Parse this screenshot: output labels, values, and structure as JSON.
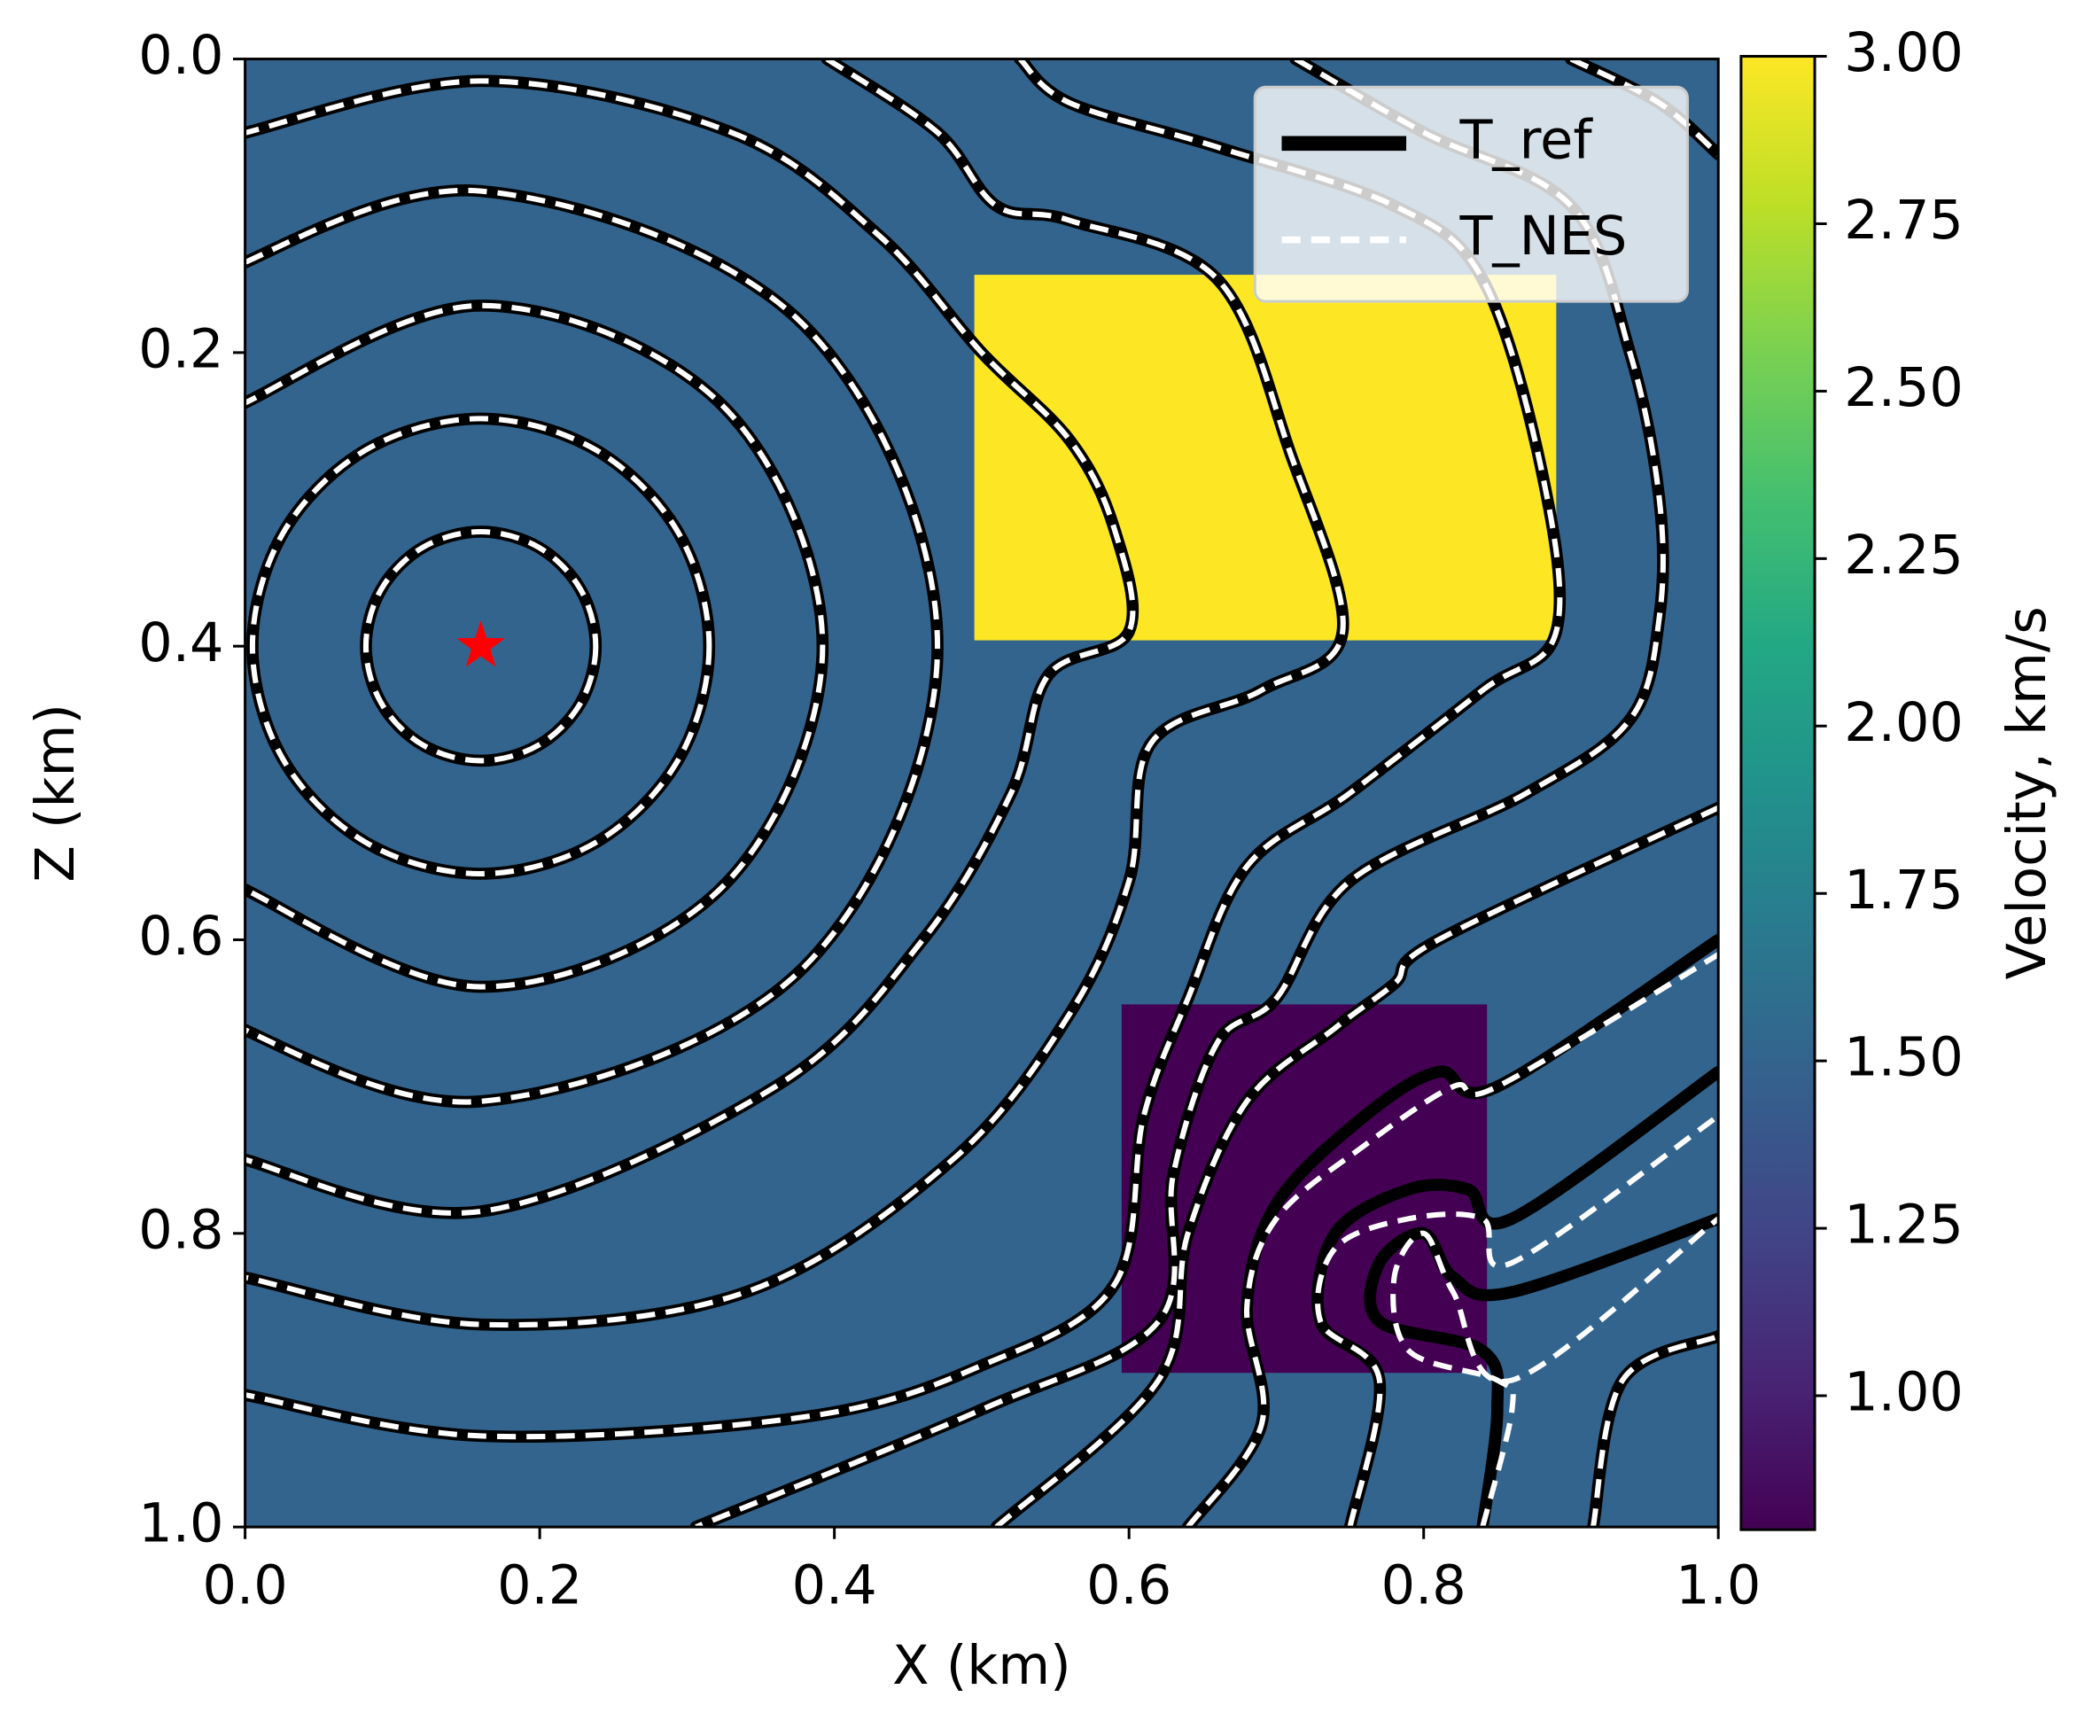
{
  "chart_data": {
    "type": "contour",
    "xlabel": "X (km)",
    "ylabel": "Z (km)",
    "xlim": [
      0,
      1
    ],
    "ylim": [
      1,
      0
    ],
    "xticks": [
      {
        "value": 0,
        "label": "0.0"
      },
      0.2,
      0.4,
      0.6,
      0.8,
      {
        "value": 1,
        "label": "1.0"
      }
    ],
    "yticks": [
      {
        "value": 0,
        "label": "0.0"
      },
      0.2,
      0.4,
      0.6,
      0.8,
      {
        "value": 1,
        "label": "1.0"
      }
    ],
    "colormap": "viridis",
    "colorbar_label": "Velocity, km/s",
    "clim": [
      0.8,
      3.0
    ],
    "cticks": [
      {
        "value": 1,
        "label": "1.00"
      },
      1.25,
      {
        "value": 1.5,
        "label": "1.50"
      },
      1.75,
      {
        "value": 2,
        "label": "2.00"
      },
      2.25,
      {
        "value": 2.5,
        "label": "2.50"
      },
      2.75,
      {
        "value": 3,
        "label": "3.00"
      }
    ],
    "velocity": {
      "background": 1.5,
      "boxes": [
        {
          "x": [
            0.495,
            0.89
          ],
          "z": [
            0.147,
            0.396
          ],
          "value": 3.0
        },
        {
          "x": [
            0.595,
            0.843
          ],
          "z": [
            0.644,
            0.895
          ],
          "value": 0.8
        }
      ]
    },
    "source": {
      "x": 0.16,
      "z": 0.4,
      "color": "#ff0000"
    },
    "legend": "upper right",
    "series": [
      {
        "name": "T_ref",
        "color": "#000000",
        "linestyle": "solid",
        "contours": [
          {
            "x": [
              0.238,
              0.2275,
              0.199,
              0.16,
              0.121,
              0.0925,
              0.082,
              0.0925,
              0.121,
              0.16,
              0.199,
              0.2275,
              0.238
            ],
            "z": [
              0.4,
              0.439,
              0.4675,
              0.478,
              0.4675,
              0.439,
              0.4,
              0.361,
              0.3325,
              0.322,
              0.3325,
              0.361,
              0.4
            ]
          },
          {
            "x": [
              0.315,
              0.294,
              0.2375,
              0.16,
              0.0825,
              0.026,
              0.005,
              0.026,
              0.0825,
              0.16,
              0.2375,
              0.294,
              0.315
            ],
            "z": [
              0.4,
              0.4775,
              0.534,
              0.555,
              0.534,
              0.4775,
              0.4,
              0.3225,
              0.266,
              0.245,
              0.266,
              0.3225,
              0.4
            ]
          },
          {
            "x": [
              -0.004,
              0.16,
              0.324,
              0.392,
              0.324,
              0.16,
              -0.004
            ],
            "z": [
              0.236,
              0.168,
              0.236,
              0.4,
              0.564,
              0.632,
              0.564
            ]
          },
          {
            "x": [
              -0.018,
              0.16,
              0.379,
              0.47,
              0.379,
              0.16,
              -0.018
            ],
            "z": [
              0.146,
              0.09,
              0.181,
              0.4,
              0.619,
              0.71,
              0.654
            ]
          },
          {
            "x": [
              -0.003,
              0.16,
              0.33,
              0.43,
              0.5,
              0.56,
              0.59,
              0.6,
              0.545,
              0.52,
              0.46,
              0.36,
              0.16,
              -0.003
            ],
            "z": [
              0.051,
              0.015,
              0.05,
              0.12,
              0.2,
              0.26,
              0.32,
              0.39,
              0.42,
              0.5,
              0.6,
              0.7,
              0.785,
              0.749
            ]
          },
          {
            "x": [
              0.395,
              0.47,
              0.51,
              0.56,
              0.66,
              0.71,
              0.745,
              0.69,
              0.615,
              0.6,
              0.56,
              0.48,
              0.34,
              0.16,
              0
            ],
            "z": [
              0,
              0.05,
              0.1,
              0.11,
              0.15,
              0.27,
              0.39,
              0.43,
              0.466,
              0.56,
              0.65,
              0.75,
              0.84,
              0.862,
              0.83
            ]
          },
          {
            "x": [
              0.526,
              0.56,
              0.66,
              0.78,
              0.84,
              0.88,
              0.89,
              0.84,
              0.75,
              0.68,
              0.64,
              0.61,
              0.59,
              0.5,
              0.38,
              0.16,
              0
            ],
            "z": [
              0,
              0.03,
              0.06,
              0.1,
              0.15,
              0.28,
              0.39,
              0.43,
              0.5,
              0.55,
              0.64,
              0.72,
              0.835,
              0.89,
              0.925,
              0.938,
              0.91
            ]
          },
          {
            "x": [
              0.713,
              0.8,
              0.9,
              0.94,
              0.96,
              0.96,
              0.94,
              0.87,
              0.75,
              0.7,
              0.66,
              0.63,
              0.62,
              0.5,
              0.306
            ],
            "z": [
              0,
              0.05,
              0.1,
              0.2,
              0.3,
              0.38,
              0.45,
              0.5,
              0.56,
              0.64,
              0.67,
              0.76,
              0.86,
              0.92,
              1.0
            ]
          },
          {
            "x": [
              0.9,
              0.96,
              1.0
            ],
            "z": [
              0,
              0.03,
              0.065
            ]
          },
          {
            "x": [
              0.51,
              0.62,
              0.64,
              0.68,
              0.74,
              0.78,
              0.81,
              1.0
            ],
            "z": [
              1.0,
              0.9,
              0.8,
              0.71,
              0.66,
              0.63,
              0.6,
              0.51
            ]
          },
          {
            "x": [
              0.64,
              0.69,
              0.68,
              0.7,
              0.76,
              0.81,
              0.85,
              1.0
            ],
            "z": [
              1.0,
              0.93,
              0.85,
              0.78,
              0.72,
              0.69,
              0.7,
              0.6
            ]
          },
          {
            "x": [
              0.75,
              0.77,
              0.73,
              0.74,
              0.79,
              0.83,
              0.86,
              1.0
            ],
            "z": [
              1.0,
              0.9,
              0.86,
              0.8,
              0.77,
              0.77,
              0.79,
              0.69
            ]
          },
          {
            "x": [
              0.84,
              0.85,
              0.84,
              0.77,
              0.77,
              0.8,
              0.82,
              0.86,
              1.0
            ],
            "z": [
              1.0,
              0.92,
              0.88,
              0.86,
              0.82,
              0.8,
              0.83,
              0.84,
              0.79
            ]
          },
          {
            "x": [
              0.915,
              0.935,
              1.0
            ],
            "z": [
              1.0,
              0.9,
              0.87
            ]
          }
        ]
      },
      {
        "name": "T_NES",
        "color": "#ffffff",
        "linestyle": "dashed",
        "contours": [
          {
            "x": [
              0.238,
              0.2275,
              0.199,
              0.16,
              0.121,
              0.0925,
              0.082,
              0.0925,
              0.121,
              0.16,
              0.199,
              0.2275,
              0.238
            ],
            "z": [
              0.4,
              0.439,
              0.4675,
              0.478,
              0.4675,
              0.439,
              0.4,
              0.361,
              0.3325,
              0.322,
              0.3325,
              0.361,
              0.4
            ]
          },
          {
            "x": [
              0.315,
              0.294,
              0.2375,
              0.16,
              0.0825,
              0.026,
              0.005,
              0.026,
              0.0825,
              0.16,
              0.2375,
              0.294,
              0.315
            ],
            "z": [
              0.4,
              0.4775,
              0.534,
              0.555,
              0.534,
              0.4775,
              0.4,
              0.3225,
              0.266,
              0.245,
              0.266,
              0.3225,
              0.4
            ]
          },
          {
            "x": [
              -0.004,
              0.16,
              0.324,
              0.392,
              0.324,
              0.16,
              -0.004
            ],
            "z": [
              0.236,
              0.168,
              0.236,
              0.4,
              0.564,
              0.632,
              0.564
            ]
          },
          {
            "x": [
              -0.018,
              0.16,
              0.379,
              0.47,
              0.379,
              0.16,
              -0.018
            ],
            "z": [
              0.146,
              0.09,
              0.181,
              0.4,
              0.619,
              0.71,
              0.654
            ]
          },
          {
            "x": [
              -0.003,
              0.16,
              0.33,
              0.43,
              0.5,
              0.56,
              0.59,
              0.6,
              0.545,
              0.52,
              0.46,
              0.36,
              0.16,
              -0.003
            ],
            "z": [
              0.051,
              0.015,
              0.05,
              0.12,
              0.2,
              0.26,
              0.32,
              0.39,
              0.42,
              0.5,
              0.6,
              0.7,
              0.785,
              0.749
            ]
          },
          {
            "x": [
              0.395,
              0.47,
              0.51,
              0.56,
              0.66,
              0.71,
              0.745,
              0.69,
              0.615,
              0.6,
              0.56,
              0.48,
              0.34,
              0.16,
              0
            ],
            "z": [
              0,
              0.05,
              0.1,
              0.11,
              0.15,
              0.27,
              0.39,
              0.43,
              0.466,
              0.56,
              0.65,
              0.75,
              0.84,
              0.862,
              0.83
            ]
          },
          {
            "x": [
              0.526,
              0.56,
              0.66,
              0.78,
              0.84,
              0.88,
              0.89,
              0.84,
              0.75,
              0.68,
              0.64,
              0.61,
              0.59,
              0.5,
              0.38,
              0.16,
              0
            ],
            "z": [
              0,
              0.03,
              0.06,
              0.1,
              0.15,
              0.28,
              0.39,
              0.43,
              0.5,
              0.55,
              0.64,
              0.72,
              0.835,
              0.89,
              0.925,
              0.938,
              0.91
            ]
          },
          {
            "x": [
              0.713,
              0.8,
              0.9,
              0.94,
              0.96,
              0.96,
              0.94,
              0.87,
              0.75,
              0.7,
              0.66,
              0.63,
              0.62,
              0.5,
              0.306
            ],
            "z": [
              0,
              0.05,
              0.1,
              0.2,
              0.3,
              0.38,
              0.45,
              0.5,
              0.56,
              0.64,
              0.67,
              0.76,
              0.86,
              0.92,
              1.0
            ]
          },
          {
            "x": [
              0.9,
              0.96,
              1.0
            ],
            "z": [
              0,
              0.03,
              0.065
            ]
          },
          {
            "x": [
              0.51,
              0.62,
              0.64,
              0.68,
              0.74,
              0.78,
              0.81,
              1.0
            ],
            "z": [
              1.0,
              0.9,
              0.8,
              0.71,
              0.66,
              0.63,
              0.6,
              0.51
            ]
          },
          {
            "x": [
              0.64,
              0.69,
              0.68,
              0.7,
              0.76,
              0.82,
              0.85,
              1.0
            ],
            "z": [
              1.0,
              0.93,
              0.85,
              0.79,
              0.74,
              0.7,
              0.7,
              0.61
            ]
          },
          {
            "x": [
              0.75,
              0.77,
              0.73,
              0.74,
              0.79,
              0.84,
              0.86,
              1.0
            ],
            "z": [
              1.0,
              0.9,
              0.86,
              0.81,
              0.79,
              0.79,
              0.82,
              0.72
            ]
          },
          {
            "x": [
              0.84,
              0.86,
              0.85,
              0.79,
              0.78,
              0.8,
              0.82,
              0.86,
              1.0
            ],
            "z": [
              1.0,
              0.92,
              0.9,
              0.88,
              0.83,
              0.8,
              0.84,
              0.9,
              0.79
            ]
          },
          {
            "x": [
              0.915,
              0.935,
              1.0
            ],
            "z": [
              1.0,
              0.9,
              0.87
            ]
          }
        ]
      }
    ]
  }
}
